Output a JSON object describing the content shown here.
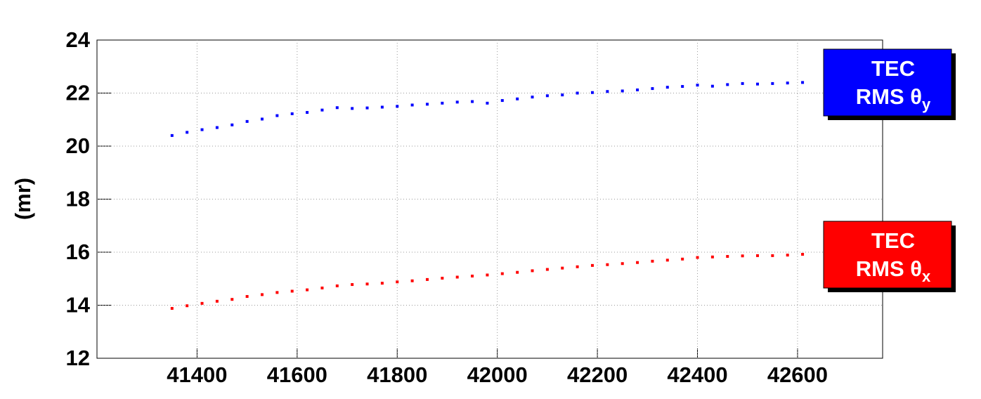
{
  "chart_data": {
    "type": "scatter",
    "ylabel": "(mr)",
    "x": [
      41350,
      41380,
      41410,
      41440,
      41470,
      41500,
      41530,
      41560,
      41590,
      41620,
      41650,
      41680,
      41710,
      41740,
      41770,
      41800,
      41830,
      41860,
      41890,
      41920,
      41950,
      41980,
      42010,
      42040,
      42070,
      42100,
      42130,
      42160,
      42190,
      42220,
      42250,
      42280,
      42310,
      42340,
      42370,
      42400,
      42430,
      42460,
      42490,
      42520,
      42550,
      42580,
      42610
    ],
    "series": [
      {
        "label": [
          "TEC",
          "RMS θ",
          "y"
        ],
        "color": "#0000ff",
        "values": [
          20.4,
          20.52,
          20.62,
          20.7,
          20.8,
          20.93,
          21.02,
          21.15,
          21.22,
          21.27,
          21.36,
          21.45,
          21.42,
          21.44,
          21.47,
          21.5,
          21.55,
          21.58,
          21.62,
          21.66,
          21.68,
          21.62,
          21.72,
          21.78,
          21.85,
          21.9,
          21.93,
          22.0,
          22.02,
          22.06,
          22.08,
          22.12,
          22.17,
          22.22,
          22.25,
          22.3,
          22.26,
          22.32,
          22.36,
          22.34,
          22.36,
          22.38,
          22.4
        ]
      },
      {
        "label": [
          "TEC",
          "RMS θ",
          "x"
        ],
        "color": "#ff0000",
        "values": [
          13.88,
          13.98,
          14.07,
          14.15,
          14.22,
          14.33,
          14.4,
          14.48,
          14.53,
          14.58,
          14.65,
          14.73,
          14.78,
          14.8,
          14.83,
          14.88,
          14.92,
          14.97,
          15.02,
          15.06,
          15.1,
          15.14,
          15.19,
          15.24,
          15.3,
          15.35,
          15.4,
          15.45,
          15.5,
          15.53,
          15.57,
          15.61,
          15.66,
          15.7,
          15.74,
          15.8,
          15.82,
          15.84,
          15.86,
          15.87,
          15.87,
          15.89,
          15.92
        ]
      }
    ],
    "xlim": [
      41200,
      42770
    ],
    "xticks": [
      41400,
      41600,
      41800,
      42000,
      42200,
      42400,
      42600
    ],
    "ylim": [
      12,
      24
    ],
    "yticks": [
      12,
      14,
      16,
      18,
      20,
      22,
      24
    ],
    "grid": true
  }
}
